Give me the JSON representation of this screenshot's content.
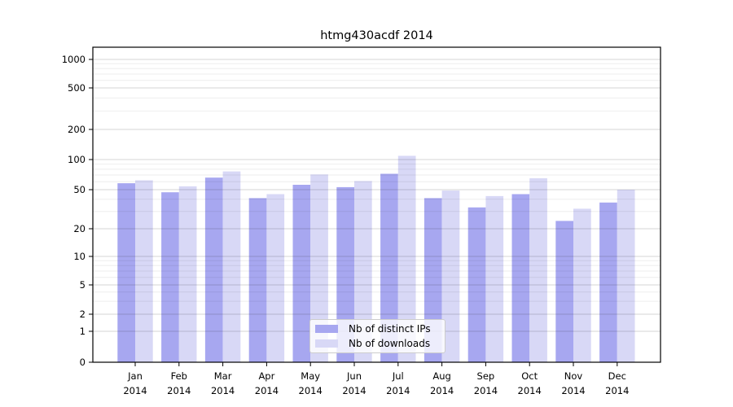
{
  "chart_data": {
    "type": "bar",
    "title": "htmg430acdf 2014",
    "categories": [
      "Jan",
      "Feb",
      "Mar",
      "Apr",
      "May",
      "Jun",
      "Jul",
      "Aug",
      "Sep",
      "Oct",
      "Nov",
      "Dec"
    ],
    "category_year_line": "2014",
    "series": [
      {
        "name": "Nb of distinct IPs",
        "color": "#a7a7f0",
        "values": [
          58,
          47,
          66,
          41,
          56,
          53,
          72,
          41,
          33,
          45,
          24,
          37
        ]
      },
      {
        "name": "Nb of downloads",
        "color": "#d8d8f6",
        "values": [
          62,
          54,
          76,
          45,
          71,
          61,
          109,
          49,
          43,
          65,
          32,
          50
        ]
      }
    ],
    "yscale": "symlog",
    "ylim": [
      0,
      1000
    ],
    "yticks": [
      0,
      1,
      2,
      5,
      10,
      20,
      50,
      100,
      200,
      500,
      1000
    ],
    "minor_gridlines": [
      3,
      4,
      6,
      7,
      8,
      9,
      30,
      40,
      60,
      70,
      80,
      90,
      300,
      400,
      600,
      700,
      800,
      900
    ],
    "grid": true,
    "legend_position": "lower-center",
    "xlabel": "",
    "ylabel": ""
  },
  "colors": {
    "axis": "#000000",
    "major_grid": "rgba(0,0,0,0.16)",
    "minor_grid": "rgba(0,0,0,0.07)",
    "background": "#ffffff"
  }
}
